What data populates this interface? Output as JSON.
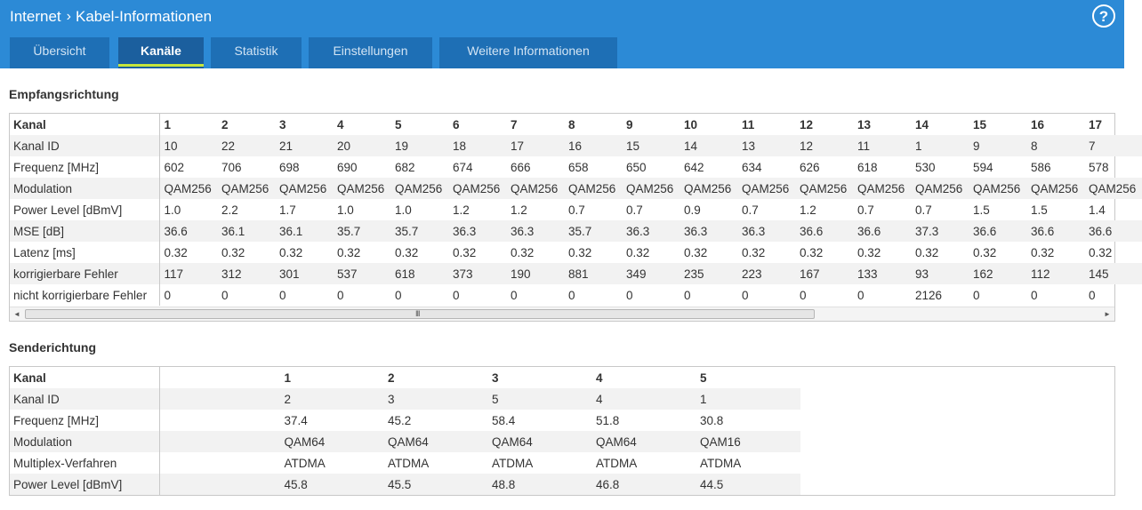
{
  "breadcrumb": {
    "root": "Internet",
    "separator": "›",
    "current": "Kabel-Informationen"
  },
  "help": {
    "label": "?"
  },
  "tabs": [
    {
      "label": "Übersicht",
      "active": false
    },
    {
      "label": "Kanäle",
      "active": true
    },
    {
      "label": "Statistik",
      "active": false
    },
    {
      "label": "Einstellungen",
      "active": false
    },
    {
      "label": "Weitere Informationen",
      "active": false
    }
  ],
  "downstream": {
    "title": "Empfangsrichtung",
    "header_label": "Kanal",
    "channels": [
      "1",
      "2",
      "3",
      "4",
      "5",
      "6",
      "7",
      "8",
      "9",
      "10",
      "11",
      "12",
      "13",
      "14",
      "15",
      "16",
      "17"
    ],
    "rows": [
      {
        "label": "Kanal ID",
        "values": [
          "10",
          "22",
          "21",
          "20",
          "19",
          "18",
          "17",
          "16",
          "15",
          "14",
          "13",
          "12",
          "11",
          "1",
          "9",
          "8",
          "7"
        ]
      },
      {
        "label": "Frequenz [MHz]",
        "values": [
          "602",
          "706",
          "698",
          "690",
          "682",
          "674",
          "666",
          "658",
          "650",
          "642",
          "634",
          "626",
          "618",
          "530",
          "594",
          "586",
          "578"
        ]
      },
      {
        "label": "Modulation",
        "values": [
          "QAM256",
          "QAM256",
          "QAM256",
          "QAM256",
          "QAM256",
          "QAM256",
          "QAM256",
          "QAM256",
          "QAM256",
          "QAM256",
          "QAM256",
          "QAM256",
          "QAM256",
          "QAM256",
          "QAM256",
          "QAM256",
          "QAM256"
        ]
      },
      {
        "label": "Power Level [dBmV]",
        "values": [
          "1.0",
          "2.2",
          "1.7",
          "1.0",
          "1.0",
          "1.2",
          "1.2",
          "0.7",
          "0.7",
          "0.9",
          "0.7",
          "1.2",
          "0.7",
          "0.7",
          "1.5",
          "1.5",
          "1.4"
        ]
      },
      {
        "label": "MSE [dB]",
        "values": [
          "36.6",
          "36.1",
          "36.1",
          "35.7",
          "35.7",
          "36.3",
          "36.3",
          "35.7",
          "36.3",
          "36.3",
          "36.3",
          "36.6",
          "36.6",
          "37.3",
          "36.6",
          "36.6",
          "36.6"
        ]
      },
      {
        "label": "Latenz [ms]",
        "values": [
          "0.32",
          "0.32",
          "0.32",
          "0.32",
          "0.32",
          "0.32",
          "0.32",
          "0.32",
          "0.32",
          "0.32",
          "0.32",
          "0.32",
          "0.32",
          "0.32",
          "0.32",
          "0.32",
          "0.32"
        ]
      },
      {
        "label": "korrigierbare Fehler",
        "values": [
          "117",
          "312",
          "301",
          "537",
          "618",
          "373",
          "190",
          "881",
          "349",
          "235",
          "223",
          "167",
          "133",
          "93",
          "162",
          "112",
          "145"
        ]
      },
      {
        "label": "nicht korrigierbare Fehler",
        "values": [
          "0",
          "0",
          "0",
          "0",
          "0",
          "0",
          "0",
          "0",
          "0",
          "0",
          "0",
          "0",
          "0",
          "2126",
          "0",
          "0",
          "0"
        ]
      }
    ],
    "scrollbar": {
      "left_arrow": "◄",
      "right_arrow": "►",
      "grip": "III",
      "scroll_position": 0
    }
  },
  "upstream": {
    "title": "Senderichtung",
    "header_label": "Kanal",
    "channels": [
      "1",
      "2",
      "3",
      "4",
      "5"
    ],
    "rows": [
      {
        "label": "Kanal ID",
        "values": [
          "2",
          "3",
          "5",
          "4",
          "1"
        ]
      },
      {
        "label": "Frequenz [MHz]",
        "values": [
          "37.4",
          "45.2",
          "58.4",
          "51.8",
          "30.8"
        ]
      },
      {
        "label": "Modulation",
        "values": [
          "QAM64",
          "QAM64",
          "QAM64",
          "QAM64",
          "QAM16"
        ]
      },
      {
        "label": "Multiplex-Verfahren",
        "values": [
          "ATDMA",
          "ATDMA",
          "ATDMA",
          "ATDMA",
          "ATDMA"
        ]
      },
      {
        "label": "Power Level [dBmV]",
        "values": [
          "45.8",
          "45.5",
          "48.8",
          "46.8",
          "44.5"
        ]
      }
    ]
  }
}
